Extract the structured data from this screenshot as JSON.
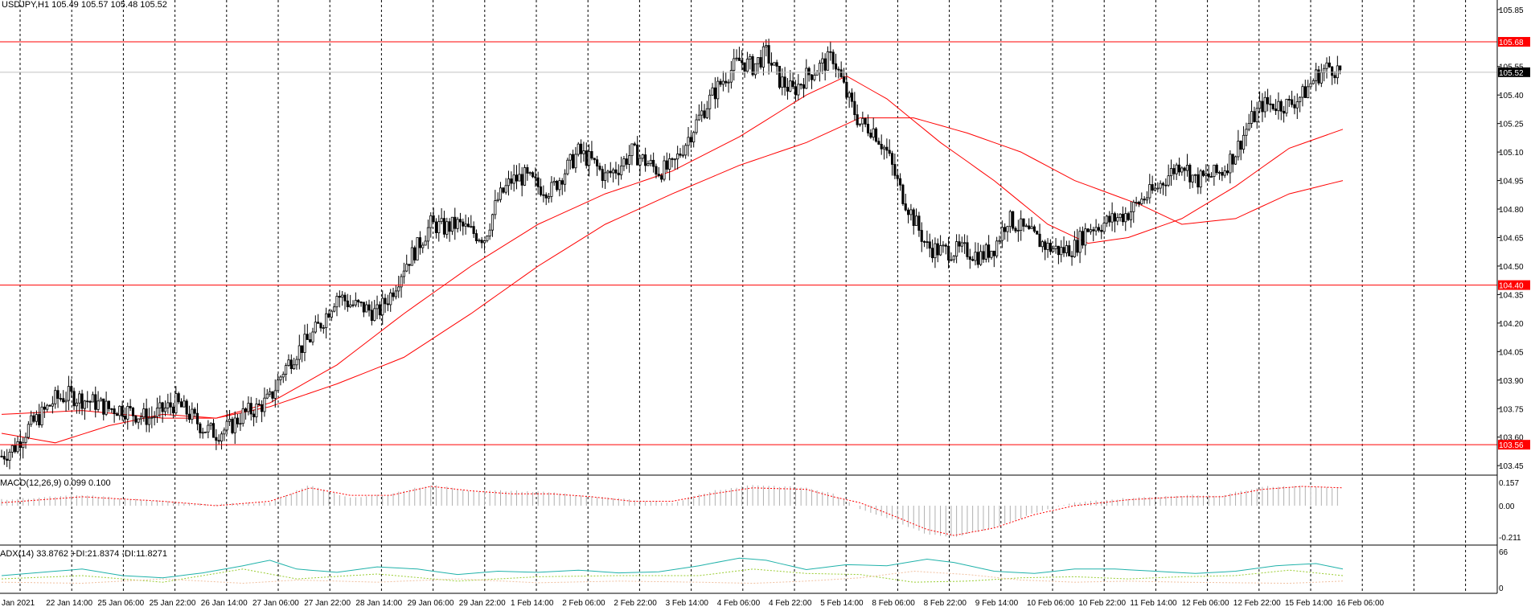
{
  "chart_data": {
    "type": "candlestick",
    "symbol_header": "USDJPY,H1  105.49 105.57 105.48 105.52",
    "y_axis": {
      "min": 103.4,
      "max": 105.9,
      "ticks": [
        "105.85",
        "105.55",
        "105.40",
        "105.25",
        "105.10",
        "104.95",
        "104.80",
        "104.65",
        "104.50",
        "104.35",
        "104.20",
        "104.05",
        "103.90",
        "103.75",
        "103.60",
        "103.45"
      ]
    },
    "x_labels": [
      "Jan 2021",
      "22 Jan 14:00",
      "25 Jan 06:00",
      "25 Jan 22:00",
      "26 Jan 14:00",
      "27 Jan 06:00",
      "27 Jan 22:00",
      "28 Jan 14:00",
      "29 Jan 06:00",
      "29 Jan 22:00",
      "1 Feb 14:00",
      "2 Feb 06:00",
      "2 Feb 22:00",
      "3 Feb 14:00",
      "4 Feb 06:00",
      "4 Feb 22:00",
      "5 Feb 14:00",
      "8 Feb 06:00",
      "8 Feb 22:00",
      "9 Feb 14:00",
      "10 Feb 06:00",
      "10 Feb 22:00",
      "11 Feb 14:00",
      "12 Feb 06:00",
      "12 Feb 22:00",
      "15 Feb 14:00",
      "16 Feb 06:00"
    ],
    "close_path": [
      [
        0,
        103.5
      ],
      [
        5,
        103.55
      ],
      [
        10,
        103.65
      ],
      [
        15,
        103.72
      ],
      [
        20,
        103.8
      ],
      [
        25,
        103.82
      ],
      [
        30,
        103.8
      ],
      [
        35,
        103.78
      ],
      [
        40,
        103.75
      ],
      [
        45,
        103.75
      ],
      [
        50,
        103.72
      ],
      [
        55,
        103.7
      ],
      [
        60,
        103.74
      ],
      [
        65,
        103.78
      ],
      [
        70,
        103.72
      ],
      [
        75,
        103.65
      ],
      [
        80,
        103.62
      ],
      [
        85,
        103.65
      ],
      [
        90,
        103.72
      ],
      [
        95,
        103.75
      ],
      [
        100,
        103.8
      ],
      [
        105,
        103.95
      ],
      [
        110,
        104.05
      ],
      [
        115,
        104.12
      ],
      [
        120,
        104.22
      ],
      [
        125,
        104.35
      ],
      [
        130,
        104.3
      ],
      [
        135,
        104.28
      ],
      [
        140,
        104.25
      ],
      [
        145,
        104.35
      ],
      [
        150,
        104.5
      ],
      [
        155,
        104.6
      ],
      [
        160,
        104.72
      ],
      [
        165,
        104.7
      ],
      [
        170,
        104.72
      ],
      [
        175,
        104.68
      ],
      [
        180,
        104.65
      ],
      [
        185,
        104.85
      ],
      [
        190,
        104.95
      ],
      [
        195,
        104.97
      ],
      [
        200,
        104.92
      ],
      [
        205,
        104.9
      ],
      [
        210,
        105.0
      ],
      [
        215,
        105.1
      ],
      [
        220,
        105.05
      ],
      [
        225,
        104.97
      ],
      [
        230,
        105.02
      ],
      [
        235,
        105.1
      ],
      [
        240,
        105.05
      ],
      [
        245,
        105.0
      ],
      [
        250,
        105.02
      ],
      [
        255,
        105.15
      ],
      [
        260,
        105.28
      ],
      [
        265,
        105.4
      ],
      [
        270,
        105.5
      ],
      [
        275,
        105.58
      ],
      [
        280,
        105.55
      ],
      [
        285,
        105.62
      ],
      [
        290,
        105.48
      ],
      [
        295,
        105.42
      ],
      [
        300,
        105.5
      ],
      [
        305,
        105.55
      ],
      [
        310,
        105.6
      ],
      [
        315,
        105.4
      ],
      [
        320,
        105.25
      ],
      [
        325,
        105.22
      ],
      [
        330,
        105.1
      ],
      [
        335,
        104.9
      ],
      [
        340,
        104.75
      ],
      [
        345,
        104.6
      ],
      [
        350,
        104.58
      ],
      [
        355,
        104.58
      ],
      [
        360,
        104.58
      ],
      [
        365,
        104.55
      ],
      [
        370,
        104.6
      ],
      [
        375,
        104.75
      ],
      [
        380,
        104.7
      ],
      [
        385,
        104.65
      ],
      [
        390,
        104.6
      ],
      [
        395,
        104.58
      ],
      [
        400,
        104.6
      ],
      [
        405,
        104.7
      ],
      [
        410,
        104.72
      ],
      [
        415,
        104.75
      ],
      [
        420,
        104.78
      ],
      [
        425,
        104.85
      ],
      [
        430,
        104.9
      ],
      [
        435,
        104.98
      ],
      [
        440,
        105.05
      ],
      [
        445,
        104.95
      ],
      [
        450,
        104.97
      ],
      [
        455,
        105.0
      ],
      [
        460,
        105.1
      ],
      [
        465,
        105.25
      ],
      [
        470,
        105.35
      ],
      [
        475,
        105.35
      ],
      [
        480,
        105.35
      ],
      [
        485,
        105.4
      ],
      [
        490,
        105.5
      ],
      [
        495,
        105.55
      ],
      [
        500,
        105.52
      ]
    ],
    "ma_fast": [
      [
        0,
        103.72
      ],
      [
        30,
        103.74
      ],
      [
        60,
        103.7
      ],
      [
        80,
        103.7
      ],
      [
        100,
        103.78
      ],
      [
        125,
        103.98
      ],
      [
        150,
        104.25
      ],
      [
        175,
        104.5
      ],
      [
        200,
        104.72
      ],
      [
        225,
        104.88
      ],
      [
        250,
        105.0
      ],
      [
        275,
        105.18
      ],
      [
        300,
        105.4
      ],
      [
        315,
        105.5
      ],
      [
        330,
        105.38
      ],
      [
        350,
        105.15
      ],
      [
        370,
        104.95
      ],
      [
        390,
        104.72
      ],
      [
        405,
        104.62
      ],
      [
        420,
        104.65
      ],
      [
        440,
        104.75
      ],
      [
        460,
        104.92
      ],
      [
        480,
        105.12
      ],
      [
        500,
        105.22
      ]
    ],
    "ma_slow": [
      [
        0,
        103.62
      ],
      [
        20,
        103.57
      ],
      [
        40,
        103.66
      ],
      [
        60,
        103.72
      ],
      [
        80,
        103.7
      ],
      [
        100,
        103.76
      ],
      [
        125,
        103.88
      ],
      [
        150,
        104.02
      ],
      [
        175,
        104.25
      ],
      [
        200,
        104.5
      ],
      [
        225,
        104.72
      ],
      [
        250,
        104.88
      ],
      [
        275,
        105.03
      ],
      [
        300,
        105.15
      ],
      [
        320,
        105.28
      ],
      [
        340,
        105.28
      ],
      [
        360,
        105.2
      ],
      [
        380,
        105.1
      ],
      [
        400,
        104.95
      ],
      [
        425,
        104.82
      ],
      [
        440,
        104.72
      ],
      [
        460,
        104.75
      ],
      [
        480,
        104.88
      ],
      [
        500,
        104.95
      ]
    ],
    "horizontal_levels": [
      {
        "value": 105.68,
        "label": "105.68",
        "color": "#ff0000"
      },
      {
        "value": 104.4,
        "label": "104.40",
        "color": "#ff0000"
      },
      {
        "value": 103.56,
        "label": "103.56",
        "color": "#ff0000"
      }
    ],
    "current_price": {
      "value": 105.52,
      "label": "105.52"
    },
    "macd": {
      "header": "MACD(12,26,9) 0.099 0.100",
      "ticks": [
        "0.157",
        "0.00",
        "-0.211"
      ],
      "ymin": -0.211,
      "ymax": 0.157,
      "hist": [
        [
          0,
          0.04
        ],
        [
          30,
          0.07
        ],
        [
          60,
          0.03
        ],
        [
          80,
          0.01
        ],
        [
          100,
          0.02
        ],
        [
          115,
          0.14
        ],
        [
          130,
          0.05
        ],
        [
          145,
          0.08
        ],
        [
          160,
          0.14
        ],
        [
          175,
          0.1
        ],
        [
          190,
          0.1
        ],
        [
          205,
          0.09
        ],
        [
          220,
          0.06
        ],
        [
          235,
          0.04
        ],
        [
          250,
          0.02
        ],
        [
          265,
          0.1
        ],
        [
          280,
          0.14
        ],
        [
          300,
          0.12
        ],
        [
          310,
          0.08
        ],
        [
          320,
          -0.02
        ],
        [
          330,
          -0.08
        ],
        [
          345,
          -0.19
        ],
        [
          355,
          -0.21
        ],
        [
          370,
          -0.15
        ],
        [
          385,
          -0.05
        ],
        [
          400,
          0.02
        ],
        [
          420,
          0.05
        ],
        [
          440,
          0.07
        ],
        [
          455,
          0.07
        ],
        [
          470,
          0.13
        ],
        [
          485,
          0.13
        ],
        [
          500,
          0.12
        ]
      ],
      "signal": [
        [
          0,
          0.02
        ],
        [
          30,
          0.06
        ],
        [
          60,
          0.03
        ],
        [
          80,
          0.0
        ],
        [
          100,
          0.03
        ],
        [
          115,
          0.12
        ],
        [
          130,
          0.07
        ],
        [
          145,
          0.07
        ],
        [
          160,
          0.13
        ],
        [
          175,
          0.1
        ],
        [
          190,
          0.08
        ],
        [
          205,
          0.08
        ],
        [
          220,
          0.06
        ],
        [
          235,
          0.03
        ],
        [
          250,
          0.03
        ],
        [
          265,
          0.08
        ],
        [
          280,
          0.12
        ],
        [
          300,
          0.11
        ],
        [
          310,
          0.06
        ],
        [
          320,
          0.02
        ],
        [
          330,
          -0.05
        ],
        [
          345,
          -0.16
        ],
        [
          355,
          -0.2
        ],
        [
          370,
          -0.15
        ],
        [
          385,
          -0.06
        ],
        [
          400,
          0.0
        ],
        [
          420,
          0.04
        ],
        [
          440,
          0.06
        ],
        [
          455,
          0.06
        ],
        [
          470,
          0.11
        ],
        [
          485,
          0.13
        ],
        [
          500,
          0.12
        ]
      ]
    },
    "adx": {
      "header": "ADX(14) 33.8762 +DI:21.8374 -DI:11.8271",
      "ticks": [
        "66",
        "0"
      ],
      "ymin": 0,
      "ymax": 66,
      "adx": [
        [
          0,
          22
        ],
        [
          15,
          28
        ],
        [
          30,
          34
        ],
        [
          45,
          22
        ],
        [
          60,
          18
        ],
        [
          75,
          27
        ],
        [
          90,
          40
        ],
        [
          100,
          50
        ],
        [
          110,
          34
        ],
        [
          125,
          28
        ],
        [
          140,
          38
        ],
        [
          155,
          34
        ],
        [
          170,
          24
        ],
        [
          185,
          30
        ],
        [
          200,
          28
        ],
        [
          215,
          32
        ],
        [
          230,
          27
        ],
        [
          245,
          29
        ],
        [
          260,
          40
        ],
        [
          275,
          54
        ],
        [
          285,
          50
        ],
        [
          300,
          33
        ],
        [
          315,
          42
        ],
        [
          330,
          40
        ],
        [
          345,
          52
        ],
        [
          355,
          46
        ],
        [
          370,
          30
        ],
        [
          385,
          26
        ],
        [
          400,
          34
        ],
        [
          415,
          34
        ],
        [
          430,
          30
        ],
        [
          445,
          26
        ],
        [
          460,
          30
        ],
        [
          475,
          40
        ],
        [
          490,
          44
        ],
        [
          500,
          34
        ]
      ],
      "plus_di": [
        [
          0,
          16
        ],
        [
          30,
          22
        ],
        [
          60,
          10
        ],
        [
          90,
          34
        ],
        [
          110,
          16
        ],
        [
          140,
          25
        ],
        [
          170,
          12
        ],
        [
          200,
          20
        ],
        [
          230,
          22
        ],
        [
          260,
          22
        ],
        [
          280,
          34
        ],
        [
          300,
          26
        ],
        [
          320,
          24
        ],
        [
          340,
          10
        ],
        [
          360,
          12
        ],
        [
          380,
          18
        ],
        [
          400,
          20
        ],
        [
          420,
          16
        ],
        [
          440,
          20
        ],
        [
          460,
          22
        ],
        [
          480,
          32
        ],
        [
          500,
          22
        ]
      ],
      "minus_di": [
        [
          0,
          10
        ],
        [
          30,
          8
        ],
        [
          60,
          16
        ],
        [
          90,
          8
        ],
        [
          110,
          14
        ],
        [
          140,
          10
        ],
        [
          170,
          16
        ],
        [
          200,
          9
        ],
        [
          230,
          12
        ],
        [
          260,
          10
        ],
        [
          280,
          8
        ],
        [
          300,
          12
        ],
        [
          320,
          18
        ],
        [
          340,
          30
        ],
        [
          360,
          24
        ],
        [
          380,
          14
        ],
        [
          400,
          10
        ],
        [
          420,
          12
        ],
        [
          440,
          10
        ],
        [
          460,
          9
        ],
        [
          480,
          8
        ],
        [
          500,
          12
        ]
      ]
    }
  }
}
